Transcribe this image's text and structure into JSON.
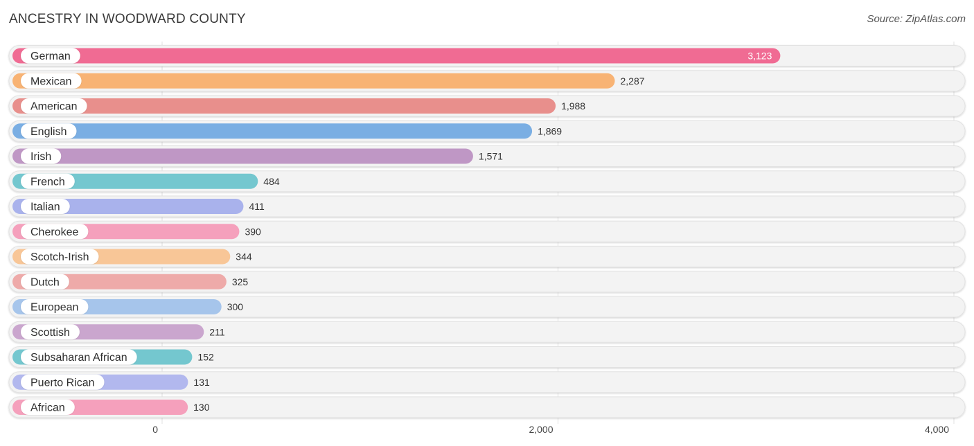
{
  "header": {
    "title": "ANCESTRY IN WOODWARD COUNTY",
    "source": "Source: ZipAtlas.com"
  },
  "chart_data": {
    "type": "bar",
    "orientation": "horizontal",
    "title": "ANCESTRY IN WOODWARD COUNTY",
    "xlabel": "",
    "ylabel": "",
    "xlim": [
      0,
      4000
    ],
    "ticks": [
      {
        "value": 0,
        "label": "0"
      },
      {
        "value": 2000,
        "label": "2,000"
      },
      {
        "value": 4000,
        "label": "4,000"
      }
    ],
    "categories": [
      "German",
      "Mexican",
      "American",
      "English",
      "Irish",
      "French",
      "Italian",
      "Cherokee",
      "Scotch-Irish",
      "Dutch",
      "European",
      "Scottish",
      "Subsaharan African",
      "Puerto Rican",
      "African"
    ],
    "values": [
      3123,
      2287,
      1988,
      1869,
      1571,
      484,
      411,
      390,
      344,
      325,
      300,
      211,
      152,
      131,
      130
    ],
    "value_labels": [
      "3,123",
      "2,287",
      "1,988",
      "1,869",
      "1,571",
      "484",
      "411",
      "390",
      "344",
      "325",
      "300",
      "211",
      "152",
      "131",
      "130"
    ],
    "colors": [
      "#f06b93",
      "#f8b374",
      "#e88f8c",
      "#7aaee3",
      "#bf97c5",
      "#74c7cf",
      "#a9b2ec",
      "#f5a0bc",
      "#f8c697",
      "#eeaaa9",
      "#a6c5eb",
      "#caa6ce",
      "#74c7cf",
      "#b2b8ee",
      "#f5a0bc"
    ]
  }
}
